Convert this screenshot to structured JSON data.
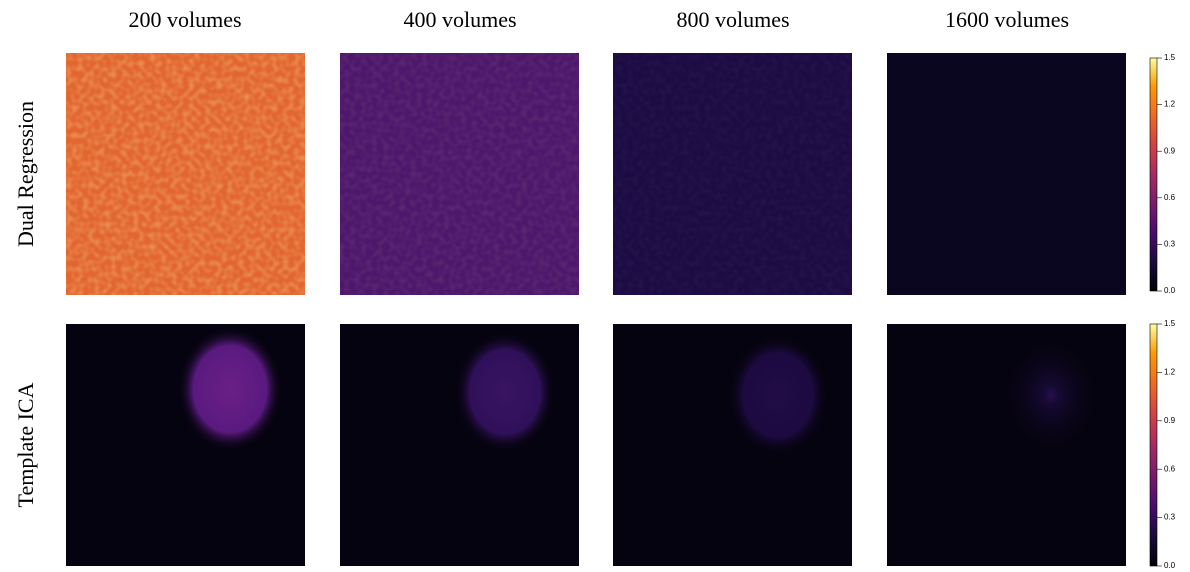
{
  "chart_data": {
    "type": "heatmap",
    "column_titles": [
      "200 volumes",
      "400 volumes",
      "800 volumes",
      "1600 volumes"
    ],
    "row_titles": [
      "Dual Regression",
      "Template ICA"
    ],
    "colorbar": {
      "lim": [
        0,
        1.5
      ],
      "ticks": [
        {
          "value": 0,
          "label": "0.0"
        },
        {
          "value": 0.3,
          "label": "0.3"
        },
        {
          "value": 0.6,
          "label": "0.6"
        },
        {
          "value": 0.9,
          "label": "0.9"
        },
        {
          "value": 1.2,
          "label": "1.2"
        },
        {
          "value": 1.5,
          "label": "1.5"
        }
      ]
    }
  }
}
